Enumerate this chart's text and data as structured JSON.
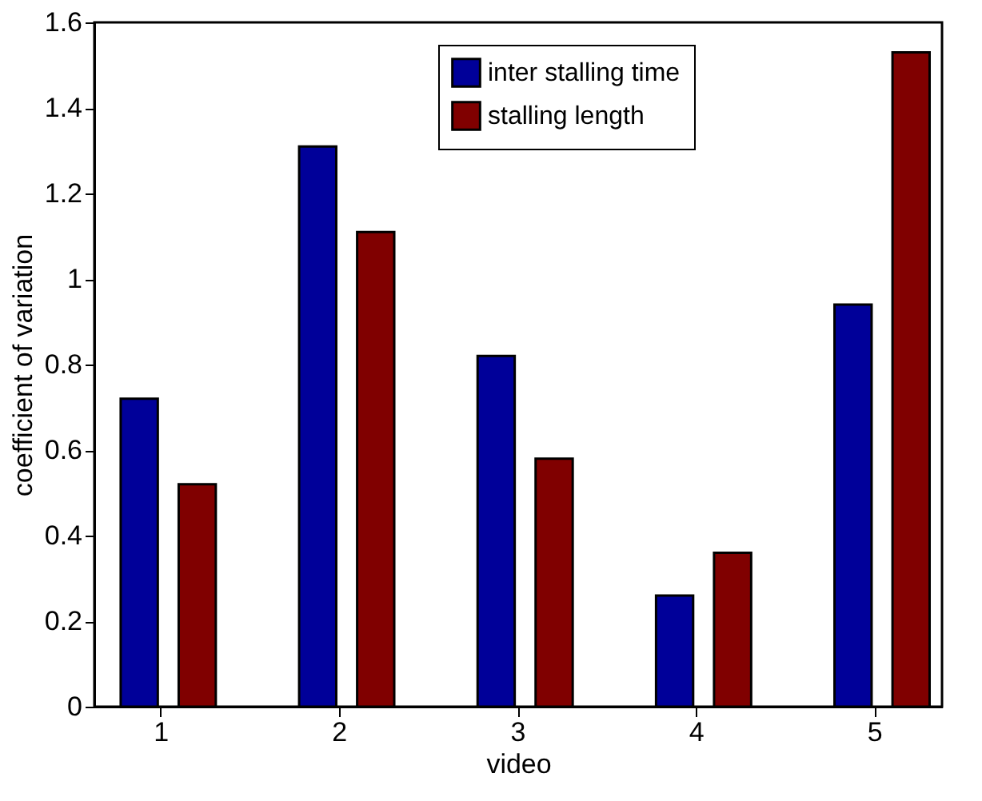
{
  "chart_data": {
    "type": "bar",
    "xlabel": "video",
    "ylabel": "coefficient of variation",
    "categories": [
      "1",
      "2",
      "3",
      "4",
      "5"
    ],
    "series": [
      {
        "name": "inter stalling time",
        "color": "#000099",
        "values": [
          0.72,
          1.31,
          0.82,
          0.26,
          0.94
        ]
      },
      {
        "name": "stalling length",
        "color": "#800000",
        "values": [
          0.52,
          1.11,
          0.58,
          0.36,
          1.53
        ]
      }
    ],
    "ylim": [
      0,
      1.6
    ],
    "yticks": [
      0,
      0.2,
      0.4,
      0.6,
      0.8,
      1,
      1.2,
      1.4,
      1.6
    ],
    "grid": false,
    "legend": "top right"
  }
}
